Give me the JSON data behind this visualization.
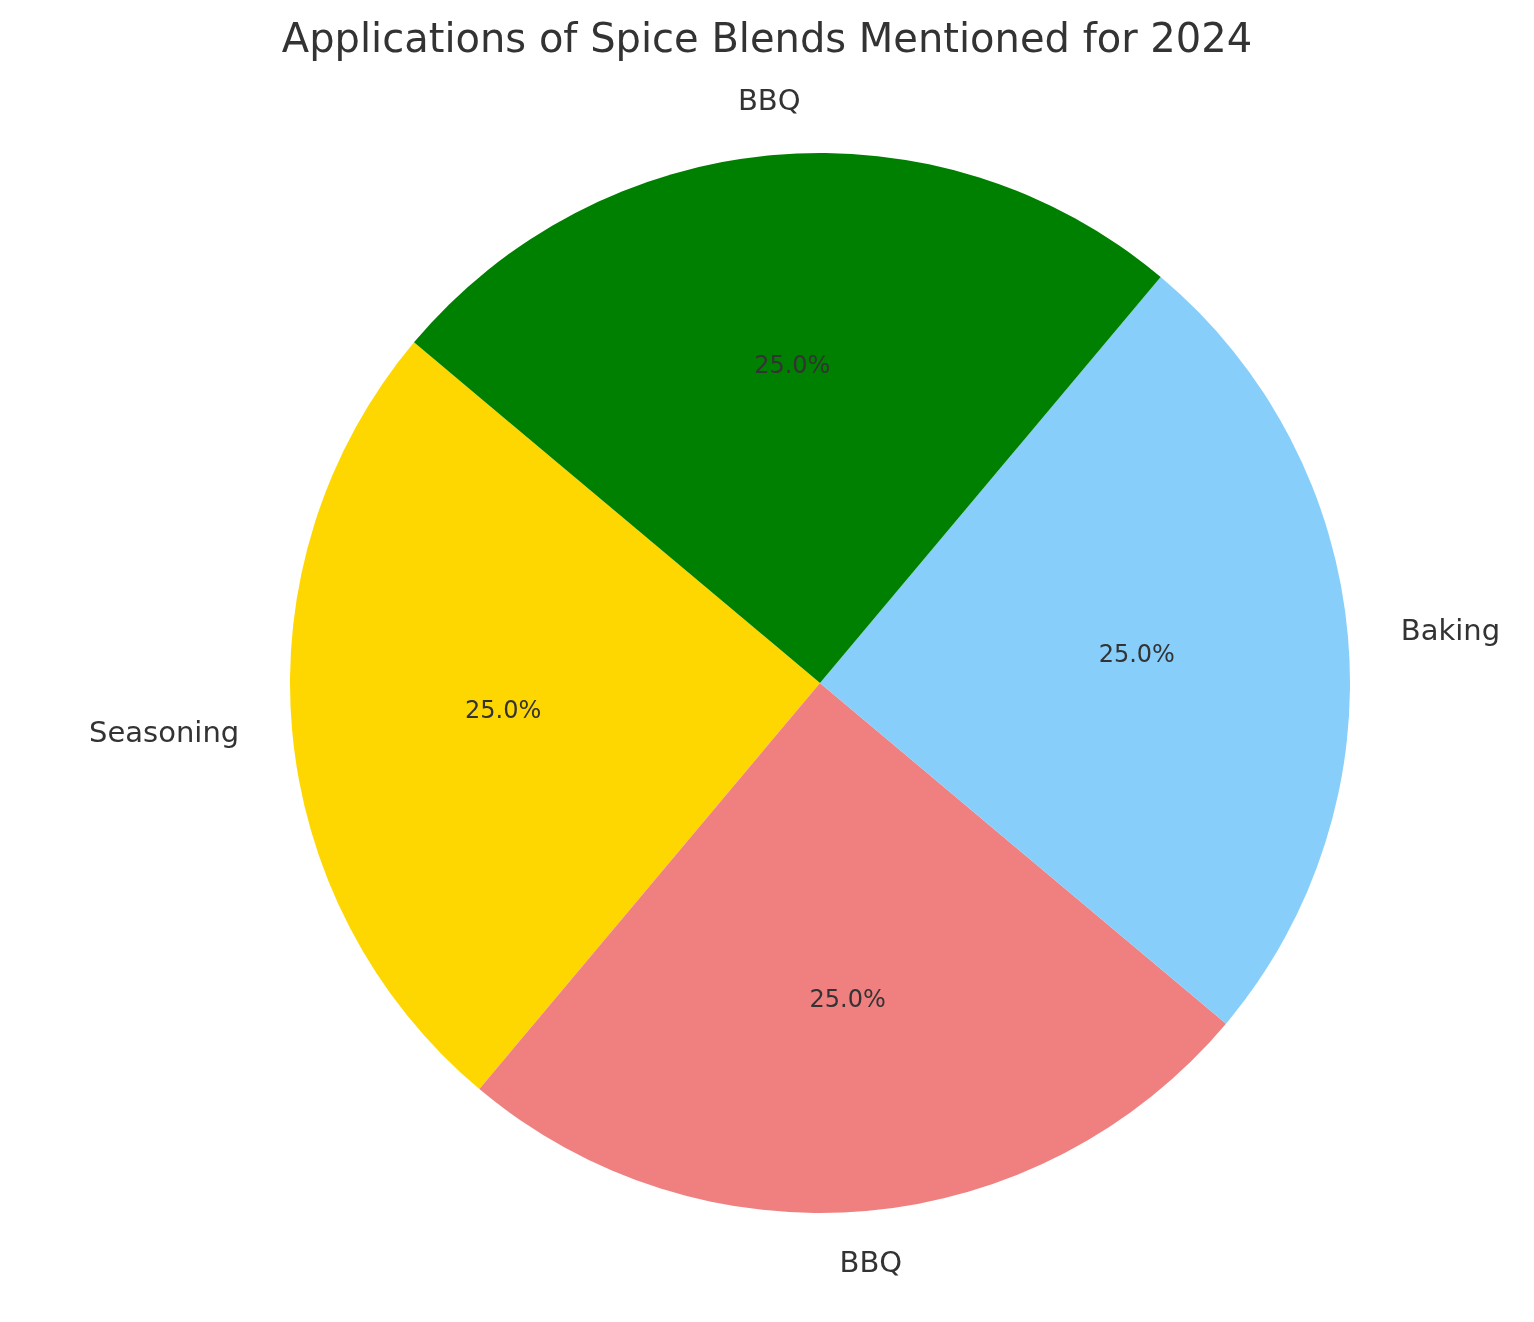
{
  "chart_data": {
    "type": "pie",
    "title": "Applications of Spice Blends Mentioned for 2024",
    "categories": [
      "Seasoning",
      "BBQ",
      "Baking",
      "BBQ"
    ],
    "values": [
      25,
      25,
      25,
      25
    ],
    "colors": [
      "#ffd700",
      "#f08080",
      "#87cefa",
      "#008000"
    ],
    "value_labels": [
      "25.0%",
      "25.0%",
      "25.0%",
      "25.0%"
    ]
  }
}
